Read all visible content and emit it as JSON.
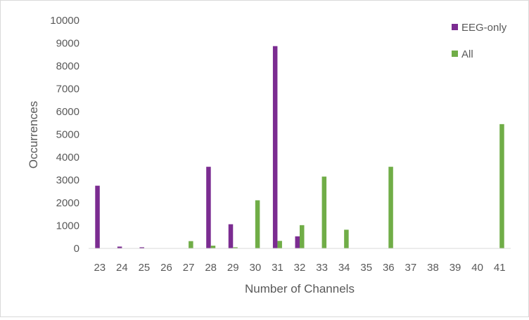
{
  "chart_data": {
    "type": "bar",
    "title": "",
    "xlabel": "Number of Channels",
    "ylabel": "Occurrences",
    "ylim": [
      0,
      10000
    ],
    "yticks": [
      0,
      1000,
      2000,
      3000,
      4000,
      5000,
      6000,
      7000,
      8000,
      9000,
      10000
    ],
    "grid": false,
    "legend": "top-right",
    "categories": [
      "23",
      "24",
      "25",
      "26",
      "27",
      "28",
      "29",
      "30",
      "31",
      "32",
      "33",
      "34",
      "35",
      "36",
      "37",
      "38",
      "39",
      "40",
      "41"
    ],
    "series": [
      {
        "name": "EEG-only",
        "color": "#7b2c91",
        "values": [
          2750,
          80,
          50,
          0,
          0,
          3580,
          1060,
          0,
          8870,
          530,
          0,
          0,
          0,
          0,
          0,
          0,
          0,
          0,
          0
        ]
      },
      {
        "name": "All",
        "color": "#70ad47",
        "values": [
          0,
          0,
          0,
          0,
          320,
          120,
          50,
          2110,
          330,
          1020,
          3150,
          820,
          0,
          3580,
          0,
          0,
          0,
          0,
          5450
        ]
      }
    ]
  }
}
